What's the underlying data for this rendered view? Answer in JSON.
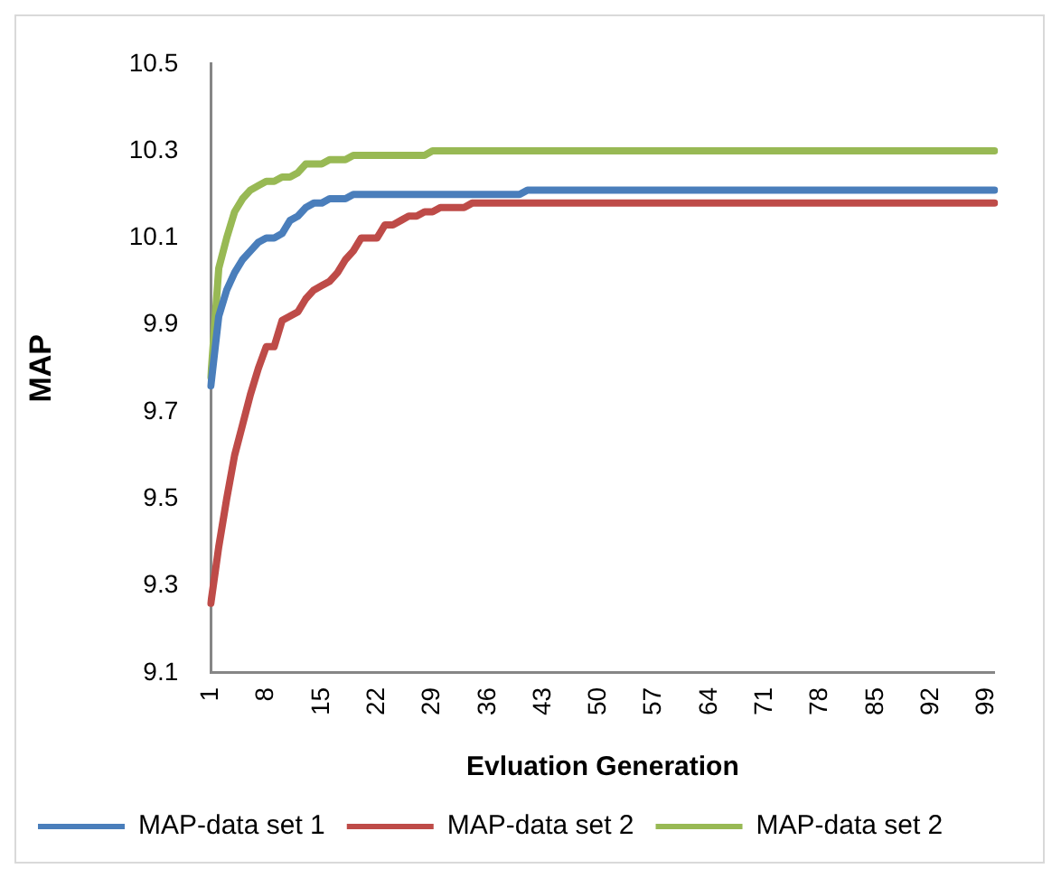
{
  "chart_data": {
    "type": "line",
    "xlabel": "Evluation Generation",
    "ylabel": "MAP",
    "categories": [
      "1",
      null,
      null,
      null,
      null,
      null,
      null,
      "8",
      null,
      null,
      null,
      null,
      null,
      null,
      "15",
      null,
      null,
      null,
      null,
      null,
      null,
      "22",
      null,
      null,
      null,
      null,
      null,
      null,
      "29",
      null,
      null,
      null,
      null,
      null,
      null,
      "36",
      null,
      null,
      null,
      null,
      null,
      null,
      "43",
      null,
      null,
      null,
      null,
      null,
      null,
      "50",
      null,
      null,
      null,
      null,
      null,
      null,
      "57",
      null,
      null,
      null,
      null,
      null,
      null,
      "64",
      null,
      null,
      null,
      null,
      null,
      null,
      "71",
      null,
      null,
      null,
      null,
      null,
      null,
      "78",
      null,
      null,
      null,
      null,
      null,
      null,
      "85",
      null,
      null,
      null,
      null,
      null,
      null,
      "92",
      null,
      null,
      null,
      null,
      null,
      null,
      "99",
      null
    ],
    "series": [
      {
        "name": "MAP-data set 1",
        "color": "#4a7ebb",
        "values": [
          9.76,
          9.92,
          9.98,
          10.02,
          10.05,
          10.07,
          10.09,
          10.1,
          10.1,
          10.11,
          10.14,
          10.15,
          10.17,
          10.18,
          10.18,
          10.19,
          10.19,
          10.19,
          10.2,
          10.2,
          10.2,
          10.2,
          10.2,
          10.2,
          10.2,
          10.2,
          10.2,
          10.2,
          10.2,
          10.2,
          10.2,
          10.2,
          10.2,
          10.2,
          10.2,
          10.2,
          10.2,
          10.2,
          10.2,
          10.2,
          10.21,
          10.21,
          10.21,
          10.21,
          10.21,
          10.21,
          10.21,
          10.21,
          10.21,
          10.21,
          10.21,
          10.21,
          10.21,
          10.21,
          10.21,
          10.21,
          10.21,
          10.21,
          10.21,
          10.21,
          10.21,
          10.21,
          10.21,
          10.21,
          10.21,
          10.21,
          10.21,
          10.21,
          10.21,
          10.21,
          10.21,
          10.21,
          10.21,
          10.21,
          10.21,
          10.21,
          10.21,
          10.21,
          10.21,
          10.21,
          10.21,
          10.21,
          10.21,
          10.21,
          10.21,
          10.21,
          10.21,
          10.21,
          10.21,
          10.21,
          10.21,
          10.21,
          10.21,
          10.21,
          10.21,
          10.21,
          10.21,
          10.21,
          10.21,
          10.21
        ]
      },
      {
        "name": "MAP-data set 2",
        "color": "#be4b48",
        "values": [
          9.26,
          9.39,
          9.5,
          9.6,
          9.67,
          9.74,
          9.8,
          9.85,
          9.85,
          9.91,
          9.92,
          9.93,
          9.96,
          9.98,
          9.99,
          10.0,
          10.02,
          10.05,
          10.07,
          10.1,
          10.1,
          10.1,
          10.13,
          10.13,
          10.14,
          10.15,
          10.15,
          10.16,
          10.16,
          10.17,
          10.17,
          10.17,
          10.17,
          10.18,
          10.18,
          10.18,
          10.18,
          10.18,
          10.18,
          10.18,
          10.18,
          10.18,
          10.18,
          10.18,
          10.18,
          10.18,
          10.18,
          10.18,
          10.18,
          10.18,
          10.18,
          10.18,
          10.18,
          10.18,
          10.18,
          10.18,
          10.18,
          10.18,
          10.18,
          10.18,
          10.18,
          10.18,
          10.18,
          10.18,
          10.18,
          10.18,
          10.18,
          10.18,
          10.18,
          10.18,
          10.18,
          10.18,
          10.18,
          10.18,
          10.18,
          10.18,
          10.18,
          10.18,
          10.18,
          10.18,
          10.18,
          10.18,
          10.18,
          10.18,
          10.18,
          10.18,
          10.18,
          10.18,
          10.18,
          10.18,
          10.18,
          10.18,
          10.18,
          10.18,
          10.18,
          10.18,
          10.18,
          10.18,
          10.18,
          10.18
        ]
      },
      {
        "name": "MAP-data set 2",
        "color": "#98b954",
        "values": [
          9.78,
          10.03,
          10.1,
          10.16,
          10.19,
          10.21,
          10.22,
          10.23,
          10.23,
          10.24,
          10.24,
          10.25,
          10.27,
          10.27,
          10.27,
          10.28,
          10.28,
          10.28,
          10.29,
          10.29,
          10.29,
          10.29,
          10.29,
          10.29,
          10.29,
          10.29,
          10.29,
          10.29,
          10.3,
          10.3,
          10.3,
          10.3,
          10.3,
          10.3,
          10.3,
          10.3,
          10.3,
          10.3,
          10.3,
          10.3,
          10.3,
          10.3,
          10.3,
          10.3,
          10.3,
          10.3,
          10.3,
          10.3,
          10.3,
          10.3,
          10.3,
          10.3,
          10.3,
          10.3,
          10.3,
          10.3,
          10.3,
          10.3,
          10.3,
          10.3,
          10.3,
          10.3,
          10.3,
          10.3,
          10.3,
          10.3,
          10.3,
          10.3,
          10.3,
          10.3,
          10.3,
          10.3,
          10.3,
          10.3,
          10.3,
          10.3,
          10.3,
          10.3,
          10.3,
          10.3,
          10.3,
          10.3,
          10.3,
          10.3,
          10.3,
          10.3,
          10.3,
          10.3,
          10.3,
          10.3,
          10.3,
          10.3,
          10.3,
          10.3,
          10.3,
          10.3,
          10.3,
          10.3,
          10.3,
          10.3
        ]
      }
    ],
    "ylim": [
      9.1,
      10.5
    ],
    "yticks": [
      9.1,
      9.3,
      9.5,
      9.7,
      9.9,
      10.1,
      10.3,
      10.5
    ],
    "grid": false,
    "legend": "bottom",
    "marker": "none",
    "line_style": "solid"
  }
}
